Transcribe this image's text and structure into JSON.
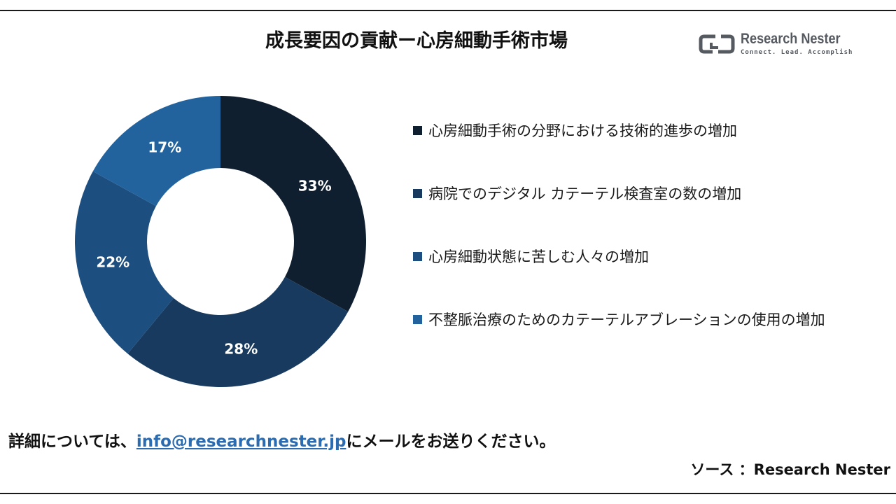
{
  "header": {
    "title": "成長要因の貢献ー心房細動手術市場"
  },
  "logo": {
    "name": "Research Nester",
    "tagline": "Connect. Lead. Accomplish",
    "color": "#555a60"
  },
  "chart_data": {
    "type": "pie",
    "title": "成長要因の貢献ー心房細動手術市場",
    "categories": [
      "心房細動手術の分野における技術的進歩の増加",
      "病院でのデジタル カテーテル検査室の数の増加",
      "心房細動状態に苦しむ人々の増加",
      "不整脈治療のためのカテーテルアブレーションの使用の増加"
    ],
    "values": [
      33,
      28,
      22,
      17
    ],
    "labels": [
      "33%",
      "28%",
      "22%",
      "17%"
    ],
    "colors": [
      "#0f1f30",
      "#173a5e",
      "#1d4e80",
      "#22639e"
    ],
    "donut": true,
    "legend_position": "right"
  },
  "legend": {
    "items": [
      {
        "label": "心房細動手術の分野における技術的進歩の増加"
      },
      {
        "label": "病院でのデジタル カテーテル検査室の数の増加"
      },
      {
        "label": "心房細動状態に苦しむ人々の増加"
      },
      {
        "label": "不整脈治療のためのカテーテルアブレーションの使用の増加"
      }
    ]
  },
  "footer": {
    "prefix": "詳細については、",
    "email": "info@researchnester.jp",
    "suffix": "にメールをお送りください。",
    "source": "ソース ：Research Nester"
  }
}
